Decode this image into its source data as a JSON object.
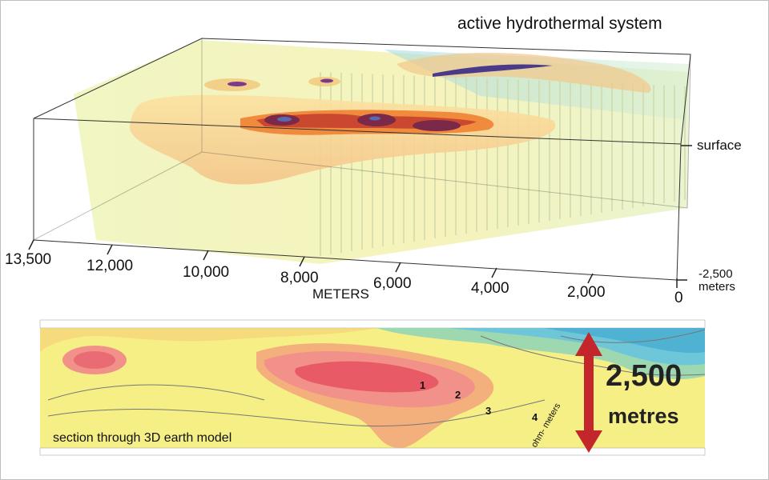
{
  "title": "active hydrothermal system",
  "top_panel": {
    "x_ticks": [
      "13,500",
      "12,000",
      "10,000",
      "8,000",
      "6,000",
      "4,000",
      "2,000",
      "0"
    ],
    "x_axis_label": "METERS",
    "surface_label": "surface",
    "depth_label": "-2,500",
    "depth_unit": "meters"
  },
  "bottom_panel": {
    "label": "section through 3D earth model",
    "contour_labels": [
      "1",
      "2",
      "3",
      "4"
    ],
    "ohm_label": "ohm-\nmeters",
    "depth_value": "2,500",
    "depth_unit": "metres",
    "colors": {
      "low_resistivity": "#e85a66",
      "mid": "#f4a87a",
      "high": "#f2ec70",
      "very_high": "#5fc3d6",
      "arrow": "#c4272b"
    }
  }
}
